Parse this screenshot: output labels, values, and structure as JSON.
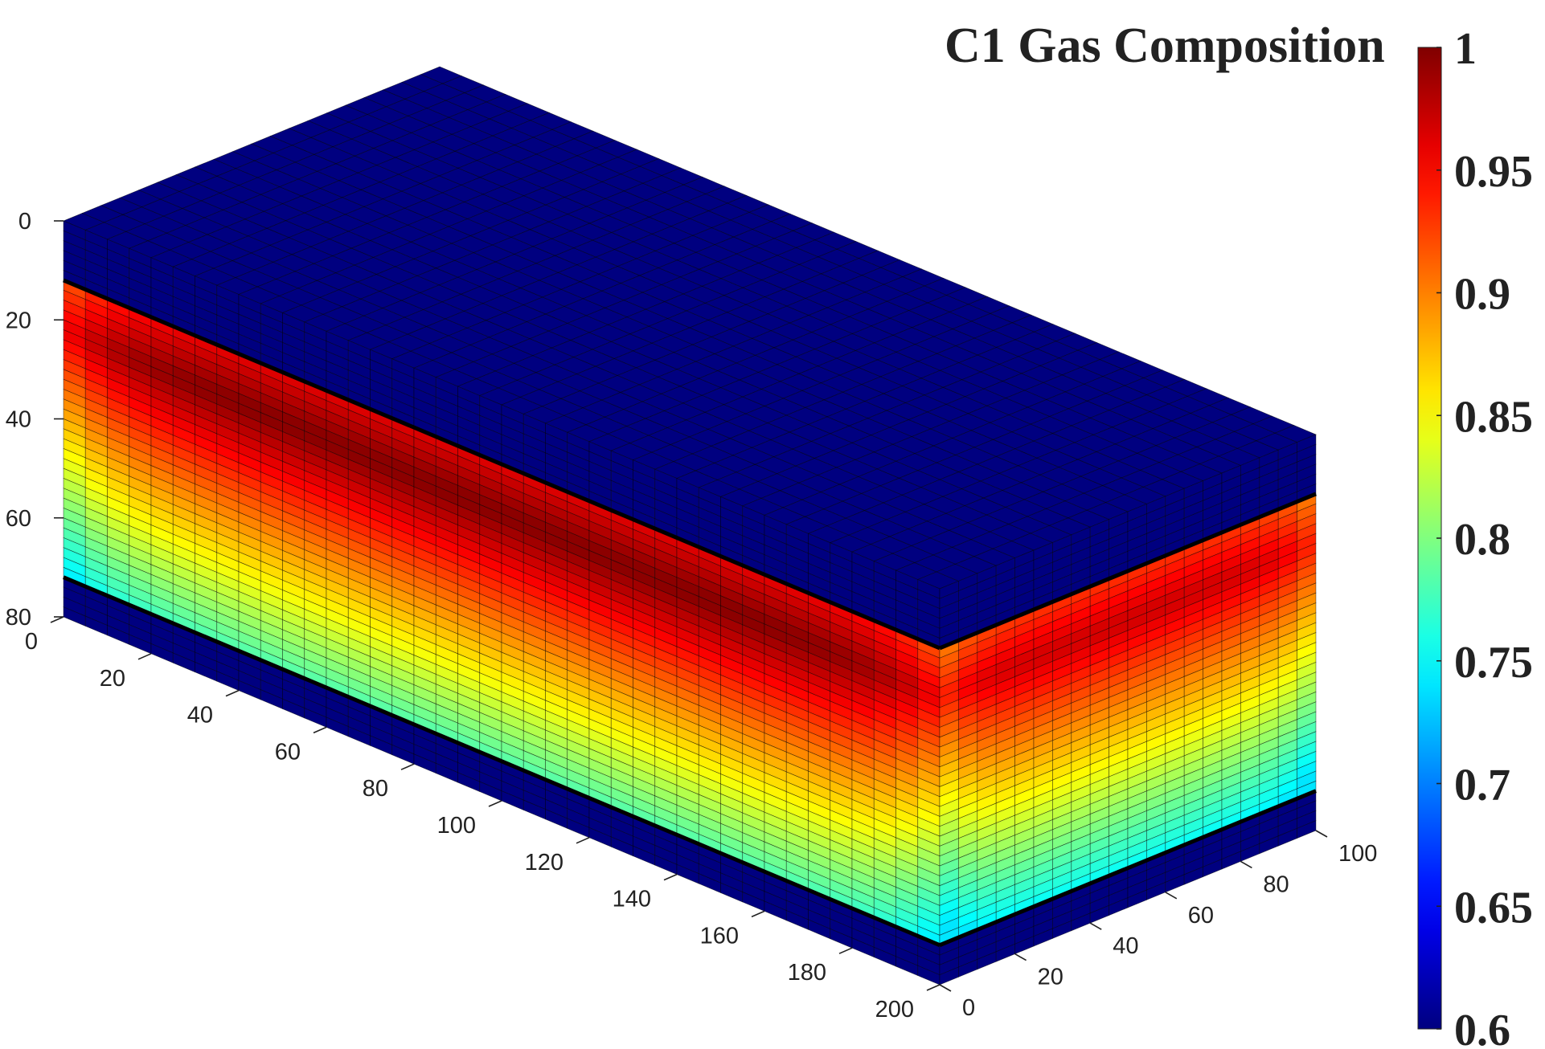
{
  "chart_data": {
    "type": "heatmap",
    "render": "3d-block",
    "title": "C1 Gas Composition",
    "colormap": "jet",
    "clim": [
      0.6,
      1.0
    ],
    "colorbar": {
      "placement": "right",
      "ticks": [
        0.6,
        0.65,
        0.7,
        0.75,
        0.8,
        0.85,
        0.9,
        0.95,
        1
      ],
      "tick_labels": [
        "0.6",
        "0.65",
        "0.7",
        "0.75",
        "0.8",
        "0.85",
        "0.9",
        "0.95",
        "1"
      ]
    },
    "axes": {
      "x": {
        "ticks": [
          0,
          20,
          40,
          60,
          80,
          100,
          120,
          140,
          160,
          180,
          200
        ],
        "tick_labels": [
          "0",
          "20",
          "40",
          "60",
          "80",
          "100",
          "120",
          "140",
          "160",
          "180",
          "200"
        ],
        "lim": [
          0,
          200
        ]
      },
      "y": {
        "ticks": [
          0,
          20,
          40,
          60,
          80,
          100
        ],
        "tick_labels": [
          "0",
          "20",
          "40",
          "60",
          "80",
          "100"
        ],
        "lim": [
          0,
          100
        ]
      },
      "z": {
        "ticks": [
          0,
          20,
          40,
          60,
          80
        ],
        "tick_labels": [
          "0",
          "20",
          "40",
          "60",
          "80"
        ],
        "lim": [
          0,
          80
        ],
        "direction": "reverse"
      }
    },
    "grid": {
      "x_cells": 40,
      "y_cells": 20,
      "z_cells": 40
    },
    "layers": [
      {
        "depth": [
          0,
          12
        ],
        "value": 0.6
      },
      {
        "depth": [
          12,
          72
        ],
        "value_range": [
          0.78,
          0.99
        ]
      },
      {
        "depth": [
          72,
          80
        ],
        "value": 0.6
      }
    ],
    "peak_composition": {
      "depth": 22,
      "value": 0.99
    },
    "bottom_composition": {
      "depth": 70,
      "value": 0.78
    }
  }
}
